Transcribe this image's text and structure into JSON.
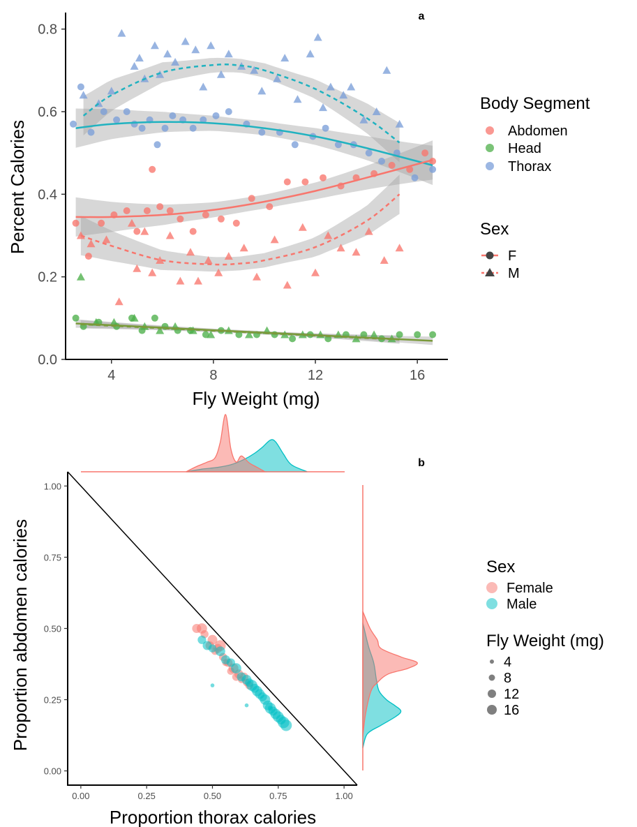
{
  "chart_data": [
    {
      "panel": "a",
      "type": "scatter",
      "xlabel": "Fly Weight (mg)",
      "ylabel": "Percent Calories",
      "xlim": [
        2.2,
        17.2
      ],
      "ylim": [
        0,
        0.84
      ],
      "xticks": [
        4,
        8,
        12,
        16
      ],
      "yticks": [
        0.0,
        0.2,
        0.4,
        0.6,
        0.8
      ],
      "ytick_labels": [
        "0.0",
        "0.2",
        "0.4",
        "0.6",
        "0.8"
      ],
      "grid": false,
      "colors": {
        "Abdomen": "#F8766D",
        "Head": "#4DAF4A",
        "Thorax": "#7B9FD9",
        "Thorax_line": "#20B2C0",
        "Head_line": "#7A9A3A"
      },
      "legends": [
        {
          "title": "Body Segment",
          "placement": "right-top",
          "entries": [
            "Abdomen",
            "Head",
            "Thorax"
          ]
        },
        {
          "title": "Sex",
          "placement": "right-middle",
          "entries": [
            "F",
            "M"
          ]
        }
      ],
      "series": [
        {
          "segment": "Thorax",
          "sex": "M",
          "marker": "triangle",
          "x": [
            2.9,
            3.5,
            4.0,
            4.4,
            4.9,
            5.1,
            5.3,
            5.7,
            5.9,
            6.2,
            6.5,
            6.9,
            7.3,
            7.6,
            7.9,
            8.3,
            8.6,
            9.1,
            9.6,
            9.9,
            10.5,
            10.8,
            11.3,
            11.8,
            12.1,
            12.3,
            12.6,
            13.1,
            13.4,
            13.9,
            14.4,
            14.8,
            15.3
          ],
          "y": [
            0.64,
            0.62,
            0.65,
            0.79,
            0.71,
            0.73,
            0.68,
            0.76,
            0.69,
            0.74,
            0.72,
            0.77,
            0.75,
            0.66,
            0.76,
            0.69,
            0.74,
            0.71,
            0.7,
            0.65,
            0.68,
            0.73,
            0.63,
            0.74,
            0.78,
            0.61,
            0.66,
            0.64,
            0.66,
            0.58,
            0.6,
            0.7,
            0.57
          ]
        },
        {
          "segment": "Thorax",
          "sex": "F",
          "marker": "circle",
          "x": [
            2.5,
            2.8,
            3.2,
            3.7,
            4.2,
            4.6,
            4.9,
            5.2,
            5.5,
            5.8,
            6.1,
            6.4,
            6.8,
            7.2,
            7.6,
            8.1,
            8.6,
            9.3,
            9.9,
            10.6,
            11.2,
            11.9,
            12.4,
            12.9,
            13.5,
            14.1,
            14.6,
            15.2,
            15.9,
            16.6
          ],
          "y": [
            0.57,
            0.66,
            0.55,
            0.6,
            0.58,
            0.6,
            0.57,
            0.56,
            0.58,
            0.52,
            0.56,
            0.59,
            0.58,
            0.56,
            0.58,
            0.59,
            0.6,
            0.57,
            0.55,
            0.55,
            0.52,
            0.54,
            0.56,
            0.52,
            0.52,
            0.5,
            0.48,
            0.5,
            0.44,
            0.46
          ]
        },
        {
          "segment": "Abdomen",
          "sex": "M",
          "marker": "triangle",
          "x": [
            2.8,
            3.2,
            3.8,
            4.3,
            4.8,
            5.0,
            5.3,
            5.6,
            5.9,
            6.3,
            6.7,
            7.1,
            7.4,
            7.8,
            8.2,
            8.6,
            9.2,
            9.7,
            10.4,
            10.9,
            11.5,
            12.0,
            12.5,
            13.0,
            13.6,
            14.1,
            14.7,
            15.3
          ],
          "y": [
            0.3,
            0.28,
            0.29,
            0.14,
            0.33,
            0.22,
            0.31,
            0.21,
            0.24,
            0.3,
            0.19,
            0.26,
            0.19,
            0.24,
            0.21,
            0.25,
            0.27,
            0.2,
            0.29,
            0.18,
            0.32,
            0.21,
            0.3,
            0.27,
            0.26,
            0.31,
            0.24,
            0.27
          ]
        },
        {
          "segment": "Abdomen",
          "sex": "F",
          "marker": "circle",
          "x": [
            2.6,
            3.1,
            3.6,
            4.1,
            4.6,
            5.0,
            5.4,
            5.6,
            5.9,
            6.3,
            6.7,
            7.2,
            7.7,
            8.3,
            8.9,
            9.5,
            10.2,
            10.9,
            11.6,
            12.3,
            13.0,
            13.6,
            14.3,
            15.0,
            15.7,
            16.3,
            16.6
          ],
          "y": [
            0.33,
            0.25,
            0.33,
            0.35,
            0.36,
            0.31,
            0.36,
            0.46,
            0.37,
            0.36,
            0.34,
            0.31,
            0.35,
            0.34,
            0.33,
            0.39,
            0.37,
            0.43,
            0.43,
            0.44,
            0.42,
            0.44,
            0.45,
            0.47,
            0.46,
            0.5,
            0.48
          ]
        },
        {
          "segment": "Head",
          "sex": "M",
          "marker": "triangle",
          "x": [
            2.8,
            3.4,
            4.1,
            4.9,
            5.3,
            5.9,
            6.5,
            7.2,
            7.9,
            8.6,
            9.4,
            10.1,
            10.8,
            11.5,
            12.2,
            12.9,
            13.6,
            14.3,
            15.0
          ],
          "y": [
            0.2,
            0.09,
            0.09,
            0.1,
            0.08,
            0.07,
            0.08,
            0.07,
            0.06,
            0.07,
            0.06,
            0.07,
            0.06,
            0.06,
            0.06,
            0.06,
            0.05,
            0.06,
            0.05
          ]
        },
        {
          "segment": "Head",
          "sex": "F",
          "marker": "circle",
          "x": [
            2.6,
            2.9,
            3.5,
            4.2,
            4.8,
            5.2,
            5.7,
            6.1,
            6.6,
            7.1,
            7.7,
            8.3,
            9.0,
            9.7,
            10.4,
            11.1,
            11.8,
            12.5,
            13.2,
            13.9,
            14.6,
            15.3,
            16.0,
            16.6
          ],
          "y": [
            0.1,
            0.08,
            0.09,
            0.08,
            0.1,
            0.07,
            0.1,
            0.08,
            0.07,
            0.07,
            0.06,
            0.07,
            0.06,
            0.06,
            0.06,
            0.05,
            0.06,
            0.05,
            0.06,
            0.06,
            0.05,
            0.06,
            0.06,
            0.06
          ]
        }
      ],
      "trends": [
        {
          "segment": "Thorax",
          "sex": "F",
          "style": "solid",
          "x": [
            2.6,
            4,
            6,
            8,
            10,
            12,
            14,
            16.6
          ],
          "y": [
            0.56,
            0.57,
            0.575,
            0.572,
            0.56,
            0.54,
            0.512,
            0.47
          ]
        },
        {
          "segment": "Thorax",
          "sex": "M",
          "style": "dashed",
          "x": [
            2.9,
            4,
            6,
            8,
            9,
            10,
            12,
            14,
            15.3
          ],
          "y": [
            0.59,
            0.64,
            0.695,
            0.713,
            0.712,
            0.7,
            0.655,
            0.585,
            0.525
          ]
        },
        {
          "segment": "Abdomen",
          "sex": "F",
          "style": "solid",
          "x": [
            2.6,
            4,
            6,
            8,
            10,
            12,
            14,
            16.6
          ],
          "y": [
            0.345,
            0.345,
            0.35,
            0.362,
            0.382,
            0.408,
            0.44,
            0.483
          ]
        },
        {
          "segment": "Abdomen",
          "sex": "M",
          "style": "dashed",
          "x": [
            2.8,
            4,
            6,
            8,
            9,
            10,
            12,
            14,
            15.3
          ],
          "y": [
            0.3,
            0.275,
            0.24,
            0.23,
            0.232,
            0.24,
            0.272,
            0.335,
            0.4
          ]
        },
        {
          "segment": "Head",
          "sex": "F",
          "style": "solid",
          "x": [
            2.6,
            16.6
          ],
          "y": [
            0.087,
            0.045
          ]
        },
        {
          "segment": "Head",
          "sex": "M",
          "style": "dashed",
          "x": [
            2.8,
            15.3
          ],
          "y": [
            0.085,
            0.048
          ]
        }
      ]
    },
    {
      "panel": "b",
      "type": "scatter",
      "xlabel": "Proportion thorax calories",
      "ylabel": "Proportion abdomen calories",
      "xlim": [
        -0.05,
        1.05
      ],
      "ylim": [
        -0.05,
        1.05
      ],
      "xticks": [
        0,
        0.25,
        0.5,
        0.75,
        1
      ],
      "xtick_labels": [
        "0.00",
        "0.25",
        "0.50",
        "0.75",
        "1.00"
      ],
      "yticks": [
        0,
        0.25,
        0.5,
        0.75,
        1
      ],
      "ytick_labels": [
        "0.00",
        "0.25",
        "0.50",
        "0.75",
        "1.00"
      ],
      "grid": false,
      "reference_line": {
        "from": [
          -0.05,
          1.05
        ],
        "to": [
          1.05,
          -0.05
        ]
      },
      "colors": {
        "Female": "#F8766D",
        "Male": "#00BFC4"
      },
      "legends": [
        {
          "title": "Sex",
          "placement": "right",
          "entries": [
            "Female",
            "Male"
          ]
        },
        {
          "title": "Fly Weight (mg)",
          "placement": "right",
          "entries": [
            "4",
            "8",
            "12",
            "16"
          ]
        }
      ],
      "series": [
        {
          "name": "Female",
          "x": [
            0.44,
            0.46,
            0.47,
            0.49,
            0.5,
            0.51,
            0.52,
            0.53,
            0.54,
            0.55,
            0.56,
            0.57,
            0.58,
            0.59,
            0.6,
            0.61,
            0.62,
            0.63,
            0.64
          ],
          "y": [
            0.5,
            0.5,
            0.48,
            0.44,
            0.46,
            0.42,
            0.43,
            0.44,
            0.4,
            0.38,
            0.38,
            0.35,
            0.36,
            0.33,
            0.34,
            0.32,
            0.33,
            0.31,
            0.3
          ],
          "weight": [
            12,
            14,
            10,
            11,
            13,
            9,
            12,
            15,
            10,
            8,
            11,
            9,
            13,
            10,
            12,
            8,
            11,
            9,
            10
          ]
        },
        {
          "name": "Male",
          "x": [
            0.46,
            0.48,
            0.5,
            0.53,
            0.55,
            0.57,
            0.59,
            0.61,
            0.63,
            0.64,
            0.65,
            0.66,
            0.67,
            0.68,
            0.69,
            0.7,
            0.71,
            0.72,
            0.73,
            0.74,
            0.75,
            0.76,
            0.77,
            0.78,
            0.5,
            0.63,
            0.72
          ],
          "y": [
            0.46,
            0.44,
            0.43,
            0.42,
            0.39,
            0.38,
            0.36,
            0.33,
            0.32,
            0.31,
            0.3,
            0.29,
            0.28,
            0.27,
            0.26,
            0.25,
            0.23,
            0.22,
            0.21,
            0.2,
            0.19,
            0.18,
            0.17,
            0.16,
            0.3,
            0.23,
            0.22
          ],
          "weight": [
            11,
            12,
            10,
            13,
            12,
            11,
            14,
            12,
            13,
            11,
            15,
            12,
            14,
            13,
            12,
            14,
            13,
            15,
            12,
            14,
            15,
            13,
            16,
            16,
            3,
            3,
            5
          ]
        }
      ],
      "marginal_top": {
        "Female": {
          "x": [
            0.4,
            0.44,
            0.48,
            0.51,
            0.53,
            0.55,
            0.57,
            0.59,
            0.61,
            0.64,
            0.67,
            0.7
          ],
          "density": [
            0,
            0.6,
            1.1,
            1.6,
            3.4,
            6.5,
            2.6,
            1.1,
            1.8,
            1.0,
            0.5,
            0
          ]
        },
        "Male": {
          "x": [
            0.4,
            0.46,
            0.52,
            0.57,
            0.62,
            0.66,
            0.69,
            0.72,
            0.74,
            0.77,
            0.8,
            0.86
          ],
          "density": [
            0,
            0.3,
            0.5,
            0.8,
            1.4,
            2.1,
            2.8,
            3.6,
            3.4,
            2.0,
            0.8,
            0
          ]
        }
      },
      "marginal_right": {
        "Female": {
          "y": [
            0.12,
            0.2,
            0.28,
            0.31,
            0.34,
            0.36,
            0.38,
            0.4,
            0.43,
            0.46,
            0.5,
            0.56
          ],
          "density": [
            0,
            0.3,
            0.9,
            1.6,
            2.8,
            5.0,
            6.0,
            4.2,
            2.0,
            1.6,
            0.8,
            0
          ]
        },
        "Male": {
          "y": [
            0.08,
            0.13,
            0.16,
            0.19,
            0.21,
            0.23,
            0.25,
            0.28,
            0.32,
            0.38,
            0.44,
            0.52
          ],
          "density": [
            0,
            0.5,
            2.0,
            3.6,
            4.2,
            3.5,
            2.6,
            1.8,
            1.5,
            1.2,
            0.6,
            0
          ]
        }
      }
    }
  ],
  "panel_labels": {
    "a": "a",
    "b": "b"
  },
  "legend_text": {
    "body_segment_title": "Body Segment",
    "abdomen": "Abdomen",
    "head": "Head",
    "thorax": "Thorax",
    "sex_title": "Sex",
    "f": "F",
    "m": "M",
    "sex_title_b": "Sex",
    "female": "Female",
    "male": "Male",
    "weight_title": "Fly Weight (mg)",
    "w4": "4",
    "w8": "8",
    "w12": "12",
    "w16": "16"
  }
}
